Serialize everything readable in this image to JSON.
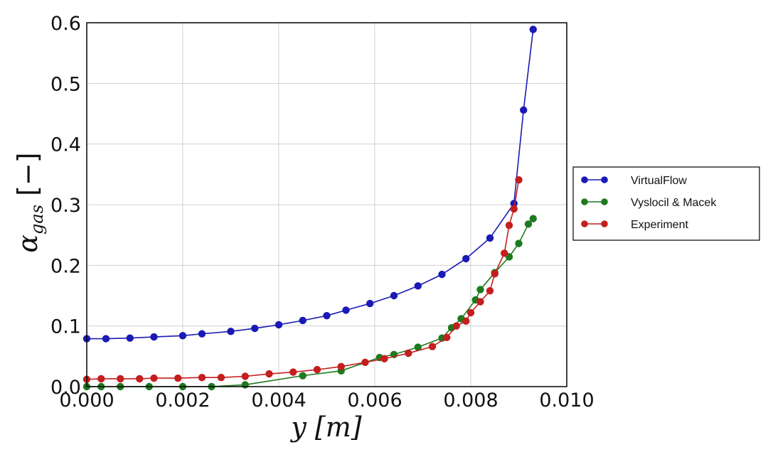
{
  "chart_data": {
    "type": "line",
    "xlabel": "y [m]",
    "ylabel": "α_gas [−]",
    "xlim": [
      0.0,
      0.01
    ],
    "ylim": [
      0.0,
      0.6
    ],
    "x_ticks": [
      "0.000",
      "0.002",
      "0.004",
      "0.006",
      "0.008",
      "0.010"
    ],
    "y_ticks": [
      "0.0",
      "0.1",
      "0.2",
      "0.3",
      "0.4",
      "0.5",
      "0.6"
    ],
    "grid": true,
    "legend_position": "right",
    "series": [
      {
        "name": "VirtualFlow",
        "color": "#1a1ab4",
        "x": [
          0.0,
          0.0004,
          0.0009,
          0.0014,
          0.002,
          0.0024,
          0.003,
          0.0035,
          0.004,
          0.0045,
          0.005,
          0.0054,
          0.0059,
          0.0064,
          0.0069,
          0.0074,
          0.0079,
          0.0084,
          0.0089,
          0.0091,
          0.0093
        ],
        "y": [
          0.079,
          0.079,
          0.08,
          0.082,
          0.084,
          0.087,
          0.091,
          0.096,
          0.102,
          0.109,
          0.117,
          0.126,
          0.137,
          0.15,
          0.166,
          0.185,
          0.211,
          0.245,
          0.302,
          0.456,
          0.589
        ]
      },
      {
        "name": "Vyslocil & Macek",
        "color": "#1e7a1e",
        "x": [
          0.0,
          0.0003,
          0.0007,
          0.0013,
          0.002,
          0.0026,
          0.0033,
          0.0045,
          0.0053,
          0.0061,
          0.0064,
          0.0069,
          0.0074,
          0.0076,
          0.0078,
          0.0081,
          0.0082,
          0.0085,
          0.0088,
          0.009,
          0.0092,
          0.0093
        ],
        "y": [
          0.0,
          0.0,
          0.0,
          0.0,
          0.0,
          0.0,
          0.003,
          0.018,
          0.026,
          0.048,
          0.053,
          0.065,
          0.08,
          0.097,
          0.112,
          0.143,
          0.16,
          0.188,
          0.214,
          0.236,
          0.268,
          0.277
        ]
      },
      {
        "name": "Experiment",
        "color": "#c41e1e",
        "x": [
          0.0,
          0.0003,
          0.0007,
          0.0011,
          0.0014,
          0.0019,
          0.0024,
          0.0028,
          0.0033,
          0.0038,
          0.0043,
          0.0048,
          0.0053,
          0.0058,
          0.0062,
          0.0067,
          0.0072,
          0.0075,
          0.0077,
          0.0079,
          0.008,
          0.0082,
          0.0084,
          0.0085,
          0.0087,
          0.0088,
          0.0089,
          0.009
        ],
        "y": [
          0.012,
          0.013,
          0.013,
          0.013,
          0.014,
          0.014,
          0.015,
          0.015,
          0.017,
          0.021,
          0.024,
          0.028,
          0.033,
          0.04,
          0.046,
          0.055,
          0.066,
          0.081,
          0.1,
          0.108,
          0.122,
          0.14,
          0.158,
          0.186,
          0.22,
          0.266,
          0.293,
          0.341
        ]
      }
    ]
  }
}
